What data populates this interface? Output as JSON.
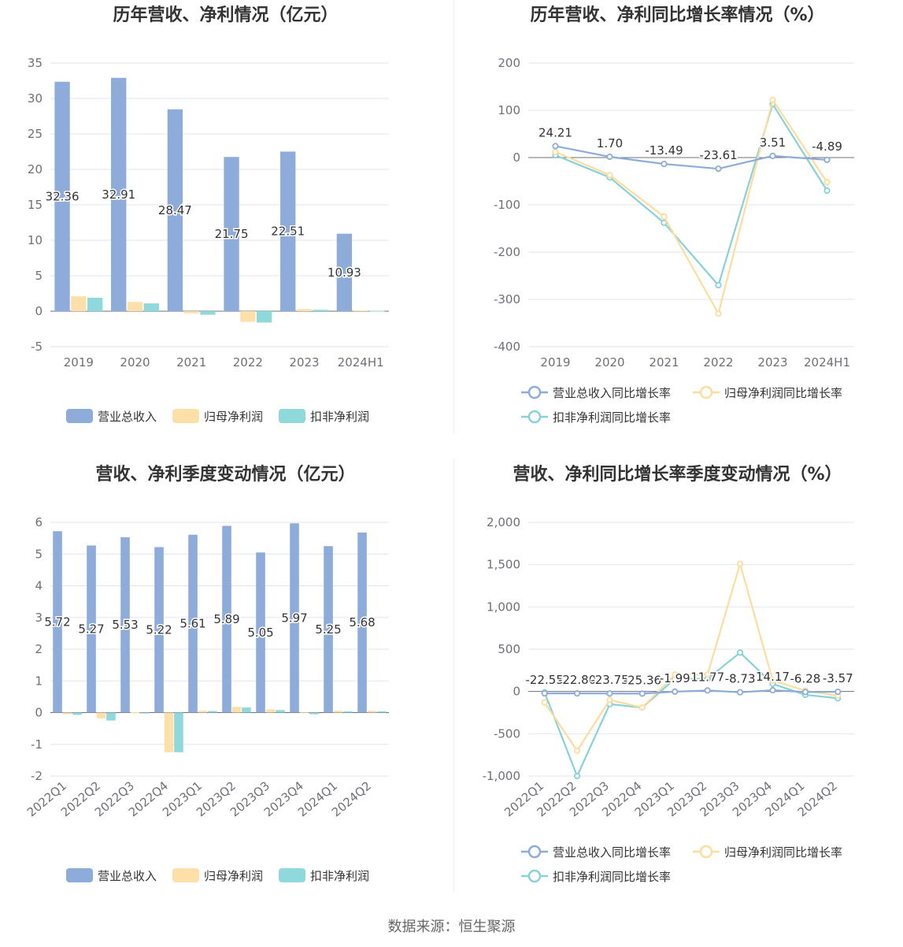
{
  "source_text": "数据来源：恒生聚源",
  "colors": {
    "revenue": "#8eacda",
    "netprofit": "#fddfaa",
    "deducted": "#8fd8dc",
    "line_revenue": "#8eacda",
    "line_netprofit": "#fddc9e",
    "line_deducted": "#86d2d6"
  },
  "chart_data": [
    {
      "type": "bar",
      "title": "历年营收、净利情况（亿元）",
      "categories": [
        "2019",
        "2020",
        "2021",
        "2022",
        "2023",
        "2024H1"
      ],
      "ylim": [
        -5,
        35
      ],
      "yticks": [
        "35",
        "30",
        "25",
        "20",
        "15",
        "10",
        "5",
        "0",
        "-5"
      ],
      "ytick_values": [
        35,
        30,
        25,
        20,
        15,
        10,
        5,
        0,
        -5
      ],
      "series": [
        {
          "name": "营业总收入",
          "values": [
            32.36,
            32.91,
            28.47,
            21.75,
            22.51,
            10.93
          ],
          "labels": [
            "32.36",
            "32.91",
            "28.47",
            "21.75",
            "22.51",
            "10.93"
          ]
        },
        {
          "name": "归母净利润",
          "values": [
            2.1,
            1.3,
            -0.3,
            -1.5,
            0.3,
            0.1
          ]
        },
        {
          "name": "扣非净利润",
          "values": [
            1.9,
            1.1,
            -0.5,
            -1.6,
            0.2,
            0.05
          ]
        }
      ],
      "legend": "bottom",
      "grid": true
    },
    {
      "type": "line",
      "title": "历年营收、净利同比增长率情况（%）",
      "categories": [
        "2019",
        "2020",
        "2021",
        "2022",
        "2023",
        "2024H1"
      ],
      "ylim": [
        -400,
        200
      ],
      "yticks": [
        "200",
        "100",
        "0",
        "-100",
        "-200",
        "-300",
        "-400"
      ],
      "ytick_values": [
        200,
        100,
        0,
        -100,
        -200,
        -300,
        -400
      ],
      "series": [
        {
          "name": "营业总收入同比增长率",
          "values": [
            24.21,
            1.7,
            -13.49,
            -23.61,
            3.51,
            -4.89
          ],
          "labels": [
            "24.21",
            "1.70",
            "-13.49",
            "-23.61",
            "3.51",
            "-4.89"
          ]
        },
        {
          "name": "归母净利润同比增长率",
          "values": [
            12,
            -37,
            -125,
            -330,
            122,
            -52
          ]
        },
        {
          "name": "扣非净利润同比增长率",
          "values": [
            5,
            -42,
            -138,
            -270,
            113,
            -70
          ]
        }
      ],
      "legend": "bottom",
      "grid": true
    },
    {
      "type": "bar",
      "title": "营收、净利季度变动情况（亿元）",
      "categories": [
        "2022Q1",
        "2022Q2",
        "2022Q3",
        "2022Q4",
        "2023Q1",
        "2023Q2",
        "2023Q3",
        "2023Q4",
        "2024Q1",
        "2024Q2"
      ],
      "ylim": [
        -2,
        6
      ],
      "yticks": [
        "6",
        "5",
        "4",
        "3",
        "2",
        "1",
        "0",
        "-1",
        "-2"
      ],
      "ytick_values": [
        6,
        5,
        4,
        3,
        2,
        1,
        0,
        -1,
        -2
      ],
      "series": [
        {
          "name": "营业总收入",
          "values": [
            5.72,
            5.27,
            5.53,
            5.22,
            5.61,
            5.89,
            5.05,
            5.97,
            5.25,
            5.68
          ],
          "labels": [
            "5.72",
            "5.27",
            "5.53",
            "5.22",
            "5.61",
            "5.89",
            "5.05",
            "5.97",
            "5.25",
            "5.68"
          ]
        },
        {
          "name": "归母净利润",
          "values": [
            -0.05,
            -0.18,
            0.01,
            -1.25,
            0.06,
            0.18,
            0.1,
            0.02,
            0.06,
            0.06
          ]
        },
        {
          "name": "扣非净利润",
          "values": [
            -0.07,
            -0.25,
            -0.01,
            -1.25,
            0.05,
            0.16,
            0.08,
            -0.05,
            0.04,
            0.04
          ]
        }
      ],
      "legend": "bottom",
      "grid": true
    },
    {
      "type": "line",
      "title": "营收、净利同比增长率季度变动情况（%）",
      "categories": [
        "2022Q1",
        "2022Q2",
        "2022Q3",
        "2022Q4",
        "2023Q1",
        "2023Q2",
        "2023Q3",
        "2023Q4",
        "2024Q1",
        "2024Q2"
      ],
      "ylim": [
        -1000,
        2000
      ],
      "yticks": [
        "2,000",
        "1,500",
        "1,000",
        "500",
        "0",
        "-500",
        "-1,000"
      ],
      "ytick_values": [
        2000,
        1500,
        1000,
        500,
        0,
        -500,
        -1000
      ],
      "series": [
        {
          "name": "营业总收入同比增长率",
          "values": [
            -22.55,
            -22.8,
            -23.75,
            -25.36,
            -1.99,
            11.77,
            -8.73,
            14.17,
            -6.28,
            -3.57
          ],
          "labels": [
            "-22.55",
            "-22.80",
            "-23.75",
            "-25.36",
            "-1.99",
            "11.77",
            "-8.73",
            "14.17",
            "-6.28",
            "-3.57"
          ]
        },
        {
          "name": "归母净利润同比增长率",
          "values": [
            -130,
            -700,
            -100,
            -190,
            200,
            200,
            1510,
            130,
            10,
            -50
          ]
        },
        {
          "name": "扣非净利润同比增长率",
          "values": [
            -10,
            -1000,
            -150,
            -190,
            150,
            150,
            460,
            90,
            -40,
            -80
          ]
        }
      ],
      "legend": "bottom",
      "grid": true
    }
  ]
}
